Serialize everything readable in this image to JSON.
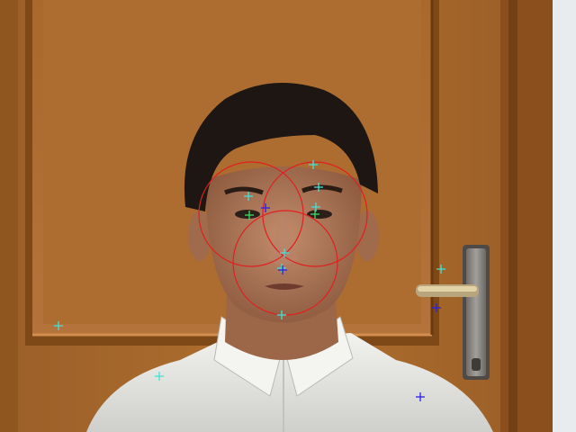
{
  "image": {
    "subject": "person-portrait",
    "colors": {
      "door": "#a8682e",
      "door_shadow": "#6e3d15",
      "wall": "#e9ecef",
      "hair": "#1d1612",
      "skin": "#b07a5c",
      "shirt": "#e6e6e3",
      "handle": "#8d8b88",
      "circle": "#e11f1f",
      "marker_cyan": "#43e0d7",
      "marker_green": "#3edc67",
      "marker_blue": "#2b21e6"
    }
  },
  "annotations": {
    "circles": [
      {
        "name": "left-eye-circle"
      },
      {
        "name": "right-eye-circle"
      },
      {
        "name": "mouth-circle"
      }
    ],
    "markers": [
      {
        "name": "marker-left-brow",
        "color": "cyan"
      },
      {
        "name": "marker-left-eye-green",
        "color": "green"
      },
      {
        "name": "marker-left-eye-blue",
        "color": "blue"
      },
      {
        "name": "marker-right-forehead",
        "color": "cyan"
      },
      {
        "name": "marker-right-brow",
        "color": "cyan"
      },
      {
        "name": "marker-right-eye",
        "color": "cyan"
      },
      {
        "name": "marker-right-eye-green",
        "color": "green"
      },
      {
        "name": "marker-nose-tip",
        "color": "cyan"
      },
      {
        "name": "marker-nose-base-cyan",
        "color": "cyan"
      },
      {
        "name": "marker-nose-base-blue",
        "color": "blue"
      },
      {
        "name": "marker-chin",
        "color": "cyan"
      },
      {
        "name": "marker-door-left",
        "color": "cyan"
      },
      {
        "name": "marker-shoulder-left",
        "color": "cyan"
      },
      {
        "name": "marker-door-handle-cyan",
        "color": "cyan"
      },
      {
        "name": "marker-door-handle-blue",
        "color": "blue"
      },
      {
        "name": "marker-shoulder-right",
        "color": "blue"
      }
    ]
  }
}
